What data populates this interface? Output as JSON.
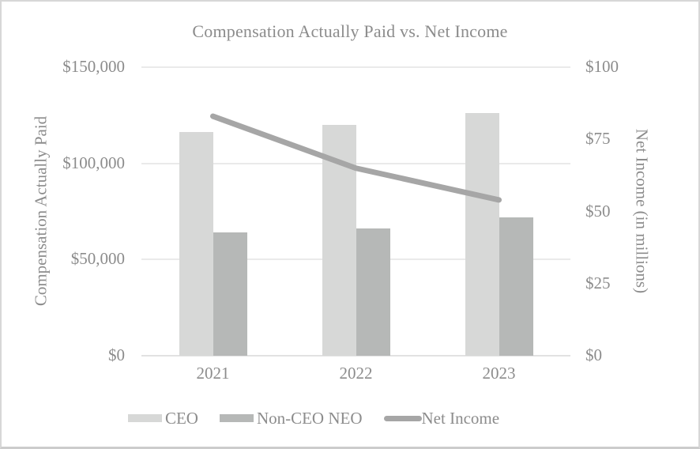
{
  "window": {
    "background": "#ffffff",
    "border_color": "#d7d7d7"
  },
  "chart_data": {
    "type": "combo",
    "title": "Compensation Actually Paid vs. Net Income",
    "categories": [
      "2021",
      "2022",
      "2023"
    ],
    "series": [
      {
        "name": "CEO",
        "type": "bar",
        "axis": "left",
        "color": "#d7d8d7",
        "values": [
          116500,
          120000,
          126000
        ]
      },
      {
        "name": "Non-CEO NEO",
        "type": "bar",
        "axis": "left",
        "color": "#b6b8b7",
        "values": [
          64000,
          66000,
          72000
        ]
      },
      {
        "name": "Net Income",
        "type": "line",
        "axis": "right",
        "color": "#a6a6a6",
        "values": [
          83,
          65,
          54
        ]
      }
    ],
    "left_axis": {
      "title": "Compensation Actually Paid",
      "min": 0,
      "max": 150000,
      "tick_labels": [
        "$0",
        "$50,000",
        "$100,000",
        "$150,000"
      ],
      "tick_values": [
        0,
        50000,
        100000,
        150000
      ]
    },
    "right_axis": {
      "title": "Net Income (in millions)",
      "min": 0,
      "max": 100,
      "tick_labels": [
        "$0",
        "$25",
        "$50",
        "$75",
        "$100"
      ],
      "tick_values": [
        0,
        25,
        50,
        75,
        100
      ]
    },
    "grid": "horizontal",
    "gridline_values": [
      50000,
      100000,
      150000
    ],
    "gridline_color": "#eaeaea",
    "axis_line_color": "#e2e2e2",
    "text_color": "#8c8c8c",
    "legend": {
      "position": "bottom",
      "items": [
        {
          "label": "CEO",
          "marker": "swatch",
          "color": "#d7d8d7"
        },
        {
          "label": "Non-CEO NEO",
          "marker": "swatch",
          "color": "#b6b8b7"
        },
        {
          "label": "Net Income",
          "marker": "line",
          "color": "#a6a6a6"
        }
      ]
    }
  }
}
